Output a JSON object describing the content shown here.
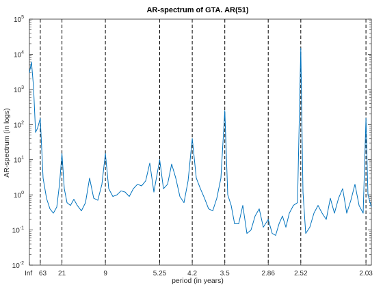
{
  "chart_data": {
    "type": "line",
    "title": "AR-spectrum of GTA. AR(51)",
    "xlabel": "period (in years)",
    "ylabel": "AR-spectrum (in logs)",
    "yscale": "log",
    "ylim": [
      0.01,
      100000
    ],
    "xlim": [
      0,
      0.5
    ],
    "grid": false,
    "x_ticks": [
      {
        "pos": 0.0,
        "label": "Inf"
      },
      {
        "pos": 0.0159,
        "label": "63"
      },
      {
        "pos": 0.0476,
        "label": "21"
      },
      {
        "pos": 0.1111,
        "label": "9"
      },
      {
        "pos": 0.1905,
        "label": "5.25"
      },
      {
        "pos": 0.2381,
        "label": "4.2"
      },
      {
        "pos": 0.2857,
        "label": "3.5"
      },
      {
        "pos": 0.3492,
        "label": "2.86"
      },
      {
        "pos": 0.3968,
        "label": "2.52"
      },
      {
        "pos": 0.4921,
        "label": "2.03"
      }
    ],
    "y_ticks": [
      {
        "value": 0.01,
        "base": "10",
        "exp": "-2"
      },
      {
        "value": 0.1,
        "base": "10",
        "exp": "-1"
      },
      {
        "value": 1,
        "base": "10",
        "exp": "0"
      },
      {
        "value": 10,
        "base": "10",
        "exp": "1"
      },
      {
        "value": 100,
        "base": "10",
        "exp": "2"
      },
      {
        "value": 1000,
        "base": "10",
        "exp": "3"
      },
      {
        "value": 10000,
        "base": "10",
        "exp": "4"
      },
      {
        "value": 100000,
        "base": "10",
        "exp": "5"
      }
    ],
    "dashed_lines_x": [
      0.0159,
      0.0476,
      0.1111,
      0.1905,
      0.2381,
      0.2857,
      0.3492,
      0.3968,
      0.4921
    ],
    "series": [
      {
        "color": "#0072bd",
        "x": [
          0.0,
          0.003,
          0.006,
          0.009,
          0.012,
          0.0159,
          0.02,
          0.025,
          0.03,
          0.035,
          0.04,
          0.044,
          0.0476,
          0.051,
          0.055,
          0.06,
          0.065,
          0.07,
          0.076,
          0.082,
          0.088,
          0.094,
          0.1,
          0.106,
          0.1111,
          0.116,
          0.122,
          0.128,
          0.134,
          0.14,
          0.146,
          0.152,
          0.158,
          0.164,
          0.17,
          0.176,
          0.182,
          0.1905,
          0.196,
          0.202,
          0.208,
          0.214,
          0.22,
          0.226,
          0.232,
          0.2381,
          0.244,
          0.25,
          0.256,
          0.262,
          0.268,
          0.274,
          0.28,
          0.2857,
          0.29,
          0.295,
          0.3,
          0.306,
          0.312,
          0.318,
          0.324,
          0.33,
          0.336,
          0.342,
          0.3492,
          0.355,
          0.36,
          0.365,
          0.37,
          0.375,
          0.38,
          0.386,
          0.392,
          0.3968,
          0.4,
          0.404,
          0.41,
          0.416,
          0.422,
          0.428,
          0.434,
          0.44,
          0.446,
          0.452,
          0.458,
          0.464,
          0.47,
          0.476,
          0.482,
          0.488,
          0.4921,
          0.495,
          0.5
        ],
        "y": [
          3000,
          6000,
          1200,
          60,
          80,
          150,
          3,
          0.8,
          0.4,
          0.3,
          0.45,
          2,
          15,
          1.5,
          0.6,
          0.5,
          0.75,
          0.5,
          0.35,
          0.6,
          3,
          0.8,
          0.7,
          2,
          15,
          1.5,
          0.9,
          1,
          1.3,
          1.2,
          0.9,
          1.5,
          2,
          1.8,
          2.5,
          8,
          1.2,
          10,
          1.5,
          2,
          7.5,
          3,
          0.9,
          0.6,
          2.5,
          40,
          3,
          1.5,
          0.8,
          0.4,
          0.35,
          0.8,
          3,
          250,
          1,
          0.5,
          0.15,
          0.15,
          0.5,
          0.08,
          0.1,
          0.25,
          0.4,
          0.12,
          0.2,
          0.08,
          0.07,
          0.15,
          0.25,
          0.12,
          0.3,
          0.5,
          0.6,
          15000,
          1.2,
          0.08,
          0.12,
          0.3,
          0.5,
          0.3,
          0.2,
          0.8,
          0.3,
          0.8,
          1.5,
          0.3,
          0.7,
          2,
          0.5,
          0.3,
          150,
          1,
          0.45
        ]
      }
    ]
  }
}
